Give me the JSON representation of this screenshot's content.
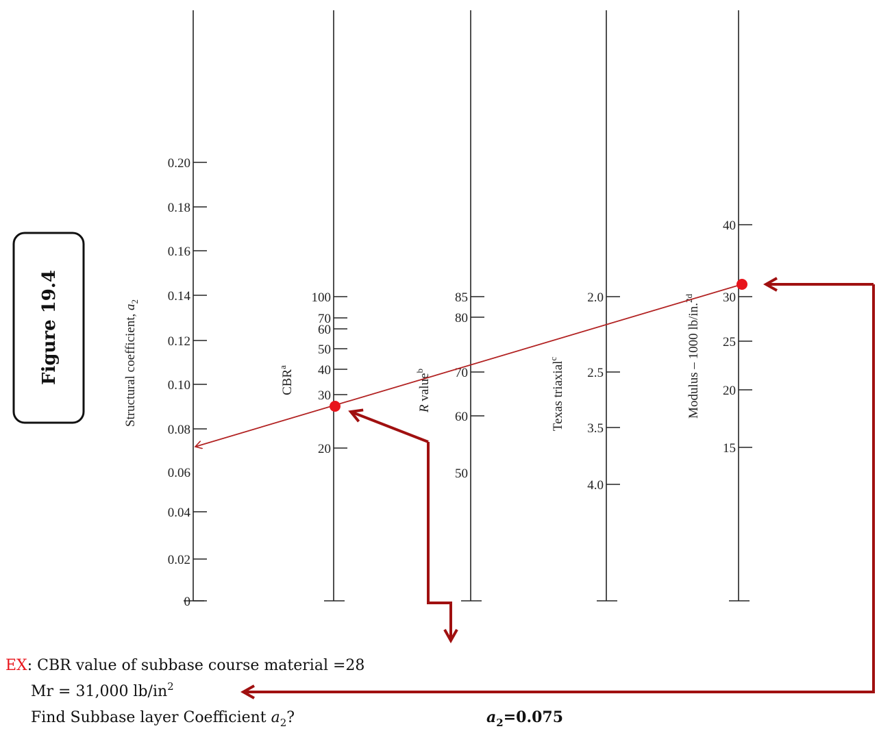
{
  "figure_label": "Figure 19.4",
  "axes": [
    {
      "title": [
        "Structural coefficient, ",
        "a",
        "2"
      ],
      "ticks": [
        "0.20",
        "0.18",
        "0.16",
        "0.14",
        "0.12",
        "0.10",
        "0.08",
        "0.06",
        "0.04",
        "0.02",
        "0"
      ]
    },
    {
      "title": [
        "CBR",
        "a"
      ],
      "ticks": [
        "100",
        "70",
        "60",
        "50",
        "40",
        "30",
        "20"
      ]
    },
    {
      "title": [
        "R",
        " value",
        "b"
      ],
      "ticks": [
        "85",
        "80",
        "70",
        "60",
        "50"
      ]
    },
    {
      "title": [
        "Texas triaxial",
        "c"
      ],
      "ticks": [
        "2.0",
        "2.5",
        "3.5",
        "4.0"
      ]
    },
    {
      "title": [
        "Modulus – 1000 lb/in.",
        "2d"
      ],
      "ticks": [
        "40",
        "30",
        "25",
        "20",
        "15"
      ]
    }
  ],
  "example": {
    "prefix": "EX",
    "line1": ": CBR value of subbase course material =28",
    "line2": [
      "Mr = 31,000 lb/in",
      "2"
    ],
    "line3": [
      "Find Subbase layer Coefficient ",
      "a",
      "2",
      "?"
    ],
    "answer": [
      "a",
      "2",
      "=0.075"
    ]
  }
}
